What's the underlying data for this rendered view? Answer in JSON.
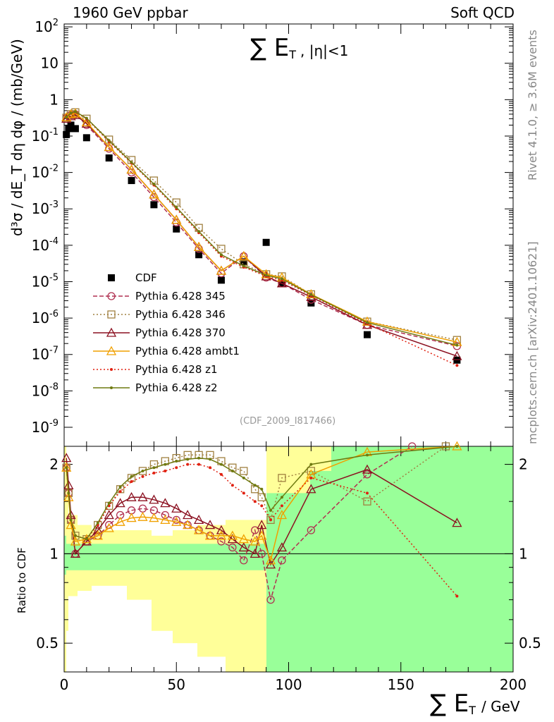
{
  "header": {
    "left": "1960 GeV ppbar",
    "right": "Soft QCD",
    "plot_title": "∑ E_T , |η|<1",
    "plot_title_main": "∑ E",
    "plot_title_sub": "T",
    "plot_title_rest": ", |η|<1",
    "reference": "(CDF_2009_I817466)",
    "side_rivet": "Rivet 4.1.0, ≥ 3.6M events",
    "side_site": "mcplots.cern.ch [arXiv:2401.10621]"
  },
  "colors": {
    "cdf": "#000000",
    "p345": "#b03050",
    "p346": "#a08040",
    "p370": "#8b1020",
    "ambt1": "#f0a000",
    "z1": "#e02010",
    "z2": "#6f7a10",
    "band_inner": "#99ff99",
    "band_outer": "#ffff99"
  },
  "chart_data": [
    {
      "type": "line",
      "panel": "main",
      "title": "∑ E_T , |η|<1",
      "xlabel": "∑ E_T / GeV",
      "ylabel": "d³σ / dE_T dη dφ / (mb/GeV)",
      "yscale": "log",
      "xlim": [
        0,
        200
      ],
      "ylim": [
        3e-10,
        120
      ],
      "ytick_labels": [
        "10^-9",
        "10^-8",
        "10^-7",
        "10^-6",
        "10^-5",
        "10^-4",
        "10^-3",
        "10^-2",
        "10^-1",
        "1",
        "10",
        "10^2"
      ],
      "xtick_labels": [
        "0",
        "50",
        "100",
        "150",
        "200"
      ],
      "legend_position": "middle-left",
      "series": [
        {
          "name": "CDF",
          "style": "square-filled",
          "x": [
            1,
            2,
            3,
            5,
            10,
            20,
            30,
            40,
            50,
            60,
            70,
            80,
            90,
            97,
            110,
            135,
            175
          ],
          "y": [
            0.11,
            0.16,
            0.2,
            0.16,
            0.09,
            0.025,
            0.006,
            0.0013,
            0.00028,
            5.5e-05,
            1.1e-05,
            3.5e-05,
            0.00012,
            9e-06,
            2.6e-06,
            3.5e-07,
            7e-08
          ]
        },
        {
          "name": "Pythia 6.428 345",
          "style": "circle-dashed",
          "x": [
            1,
            3,
            5,
            10,
            20,
            30,
            40,
            50,
            60,
            70,
            80,
            90,
            97,
            110,
            135,
            175
          ],
          "y": [
            0.32,
            0.38,
            0.4,
            0.2,
            0.045,
            0.01,
            0.0021,
            0.00042,
            8e-05,
            1.7e-05,
            5e-05,
            1.3e-05,
            9e-06,
            3.2e-06,
            6.5e-07,
            1.7e-07
          ]
        },
        {
          "name": "Pythia 6.428 346",
          "style": "square-open-dotted",
          "x": [
            1,
            3,
            5,
            10,
            20,
            30,
            40,
            50,
            60,
            70,
            80,
            90,
            97,
            110,
            135,
            175
          ],
          "y": [
            0.32,
            0.4,
            0.45,
            0.3,
            0.08,
            0.022,
            0.006,
            0.0015,
            0.0003,
            8e-05,
            3e-05,
            1.6e-05,
            1.4e-05,
            4.5e-06,
            8e-07,
            2.5e-07
          ]
        },
        {
          "name": "Pythia 6.428 370",
          "style": "triangle-open-solid",
          "x": [
            1,
            3,
            5,
            10,
            20,
            30,
            40,
            50,
            60,
            70,
            80,
            90,
            97,
            110,
            135,
            175
          ],
          "y": [
            0.3,
            0.35,
            0.38,
            0.22,
            0.05,
            0.012,
            0.0025,
            0.0005,
            9e-05,
            2e-05,
            5e-05,
            1.4e-05,
            9e-06,
            3.8e-06,
            6.5e-07,
            9e-08
          ]
        },
        {
          "name": "Pythia 6.428 ambt1",
          "style": "triangle-open-solid",
          "x": [
            1,
            3,
            5,
            10,
            20,
            30,
            40,
            50,
            60,
            70,
            80,
            90,
            97,
            110,
            135,
            175
          ],
          "y": [
            0.33,
            0.4,
            0.42,
            0.24,
            0.05,
            0.012,
            0.0025,
            0.0005,
            9e-05,
            2e-05,
            5e-05,
            1.6e-05,
            1.3e-05,
            4.5e-06,
            8e-07,
            2.2e-07
          ]
        },
        {
          "name": "Pythia 6.428 z1",
          "style": "dot-dotted",
          "x": [
            1,
            3,
            5,
            10,
            20,
            30,
            40,
            50,
            60,
            70,
            80,
            90,
            97,
            110,
            135,
            175
          ],
          "y": [
            0.32,
            0.42,
            0.46,
            0.3,
            0.07,
            0.018,
            0.0045,
            0.001,
            0.00022,
            5e-05,
            2.5e-05,
            1.4e-05,
            1.1e-05,
            4.2e-06,
            7e-07,
            5e-08
          ]
        },
        {
          "name": "Pythia 6.428 z2",
          "style": "dot-solid",
          "x": [
            1,
            3,
            5,
            10,
            20,
            30,
            40,
            50,
            60,
            70,
            80,
            90,
            97,
            110,
            135,
            175
          ],
          "y": [
            0.33,
            0.43,
            0.47,
            0.31,
            0.075,
            0.019,
            0.0048,
            0.0011,
            0.00024,
            5.5e-05,
            2.7e-05,
            1.5e-05,
            1.2e-05,
            4.4e-06,
            7.5e-07,
            1.8e-07
          ]
        }
      ]
    },
    {
      "type": "line",
      "panel": "ratio",
      "ylabel": "Ratio to CDF",
      "yscale": "log",
      "xlim": [
        0,
        200
      ],
      "ylim": [
        0.4,
        2.3
      ],
      "ytick_labels": [
        "0.5",
        "1",
        "2"
      ],
      "reference_line": 1,
      "series": [
        {
          "name": "Pythia 6.428 345",
          "x": [
            1,
            2,
            3,
            5,
            10,
            15,
            20,
            25,
            30,
            35,
            40,
            45,
            50,
            55,
            60,
            65,
            70,
            75,
            80,
            85,
            88,
            92,
            97,
            110,
            135,
            155
          ],
          "y": [
            1.95,
            1.6,
            1.3,
            1.0,
            1.1,
            1.15,
            1.25,
            1.35,
            1.4,
            1.42,
            1.4,
            1.35,
            1.3,
            1.25,
            1.2,
            1.15,
            1.1,
            1.05,
            0.95,
            1.2,
            1.0,
            0.7,
            0.95,
            1.2,
            1.85,
            2.3
          ]
        },
        {
          "name": "Pythia 6.428 346",
          "x": [
            1,
            2,
            3,
            5,
            10,
            15,
            20,
            25,
            30,
            35,
            40,
            45,
            50,
            55,
            60,
            65,
            70,
            75,
            80,
            85,
            88,
            92,
            97,
            110,
            135,
            170
          ],
          "y": [
            1.95,
            1.6,
            1.3,
            1.15,
            1.12,
            1.25,
            1.45,
            1.65,
            1.8,
            1.9,
            2.0,
            2.05,
            2.1,
            2.15,
            2.15,
            2.15,
            2.05,
            1.95,
            1.9,
            1.65,
            1.55,
            1.3,
            1.8,
            1.9,
            1.5,
            2.3
          ]
        },
        {
          "name": "Pythia 6.428 370",
          "x": [
            1,
            2,
            3,
            5,
            10,
            15,
            20,
            25,
            30,
            35,
            40,
            45,
            50,
            55,
            60,
            65,
            70,
            75,
            80,
            85,
            88,
            92,
            97,
            110,
            135,
            175
          ],
          "y": [
            2.1,
            1.7,
            1.35,
            1.0,
            1.1,
            1.2,
            1.35,
            1.48,
            1.55,
            1.55,
            1.52,
            1.48,
            1.42,
            1.35,
            1.3,
            1.25,
            1.2,
            1.12,
            1.05,
            1.0,
            1.25,
            0.92,
            1.05,
            1.65,
            1.92,
            1.27
          ]
        },
        {
          "name": "Pythia 6.428 ambt1",
          "x": [
            1,
            2,
            3,
            5,
            10,
            15,
            20,
            25,
            30,
            35,
            40,
            45,
            50,
            55,
            60,
            65,
            70,
            75,
            80,
            85,
            88,
            92,
            97,
            110,
            135,
            175
          ],
          "y": [
            1.95,
            1.55,
            1.25,
            1.1,
            1.12,
            1.15,
            1.22,
            1.28,
            1.32,
            1.33,
            1.32,
            1.3,
            1.28,
            1.25,
            1.2,
            1.15,
            1.15,
            1.15,
            1.12,
            1.1,
            1.15,
            0.95,
            1.35,
            1.85,
            2.2,
            2.3
          ]
        },
        {
          "name": "Pythia 6.428 z1",
          "x": [
            1,
            2,
            3,
            5,
            10,
            15,
            20,
            25,
            30,
            35,
            40,
            45,
            50,
            55,
            60,
            65,
            70,
            75,
            80,
            85,
            88,
            92,
            97,
            110,
            135,
            175
          ],
          "y": [
            1.95,
            1.6,
            1.3,
            1.15,
            1.12,
            1.25,
            1.45,
            1.62,
            1.75,
            1.82,
            1.87,
            1.9,
            1.95,
            2.0,
            2.0,
            1.95,
            1.85,
            1.7,
            1.6,
            1.5,
            1.45,
            1.3,
            1.45,
            1.8,
            1.6,
            0.72
          ]
        },
        {
          "name": "Pythia 6.428 z2",
          "x": [
            1,
            2,
            3,
            5,
            10,
            15,
            20,
            25,
            30,
            35,
            40,
            45,
            50,
            55,
            60,
            65,
            70,
            75,
            80,
            85,
            88,
            92,
            97,
            110,
            135,
            175
          ],
          "y": [
            1.95,
            1.6,
            1.3,
            1.15,
            1.12,
            1.27,
            1.48,
            1.68,
            1.82,
            1.9,
            1.95,
            2.0,
            2.05,
            2.08,
            2.1,
            2.08,
            2.0,
            1.9,
            1.8,
            1.7,
            1.65,
            1.4,
            1.55,
            2.0,
            2.15,
            2.3
          ]
        }
      ]
    }
  ],
  "legend": [
    {
      "label": "CDF",
      "key": "cdf",
      "marker": "square-filled",
      "line": "none"
    },
    {
      "label": "Pythia 6.428 345",
      "key": "p345",
      "marker": "circle",
      "line": "dashed"
    },
    {
      "label": "Pythia 6.428 346",
      "key": "p346",
      "marker": "square",
      "line": "dotted"
    },
    {
      "label": "Pythia 6.428 370",
      "key": "p370",
      "marker": "triangle",
      "line": "solid"
    },
    {
      "label": "Pythia 6.428 ambt1",
      "key": "ambt1",
      "marker": "triangle",
      "line": "solid"
    },
    {
      "label": "Pythia 6.428 z1",
      "key": "z1",
      "marker": "dot",
      "line": "dotted"
    },
    {
      "label": "Pythia 6.428 z2",
      "key": "z2",
      "marker": "dot",
      "line": "solid"
    }
  ],
  "axes": {
    "main_ylabel": "d³σ / dE_T dη dφ / (mb/GeV)",
    "ratio_ylabel": "Ratio to CDF",
    "xlabel_main": "∑ E",
    "xlabel_sub": "T",
    "xlabel_rest": "/ GeV"
  }
}
